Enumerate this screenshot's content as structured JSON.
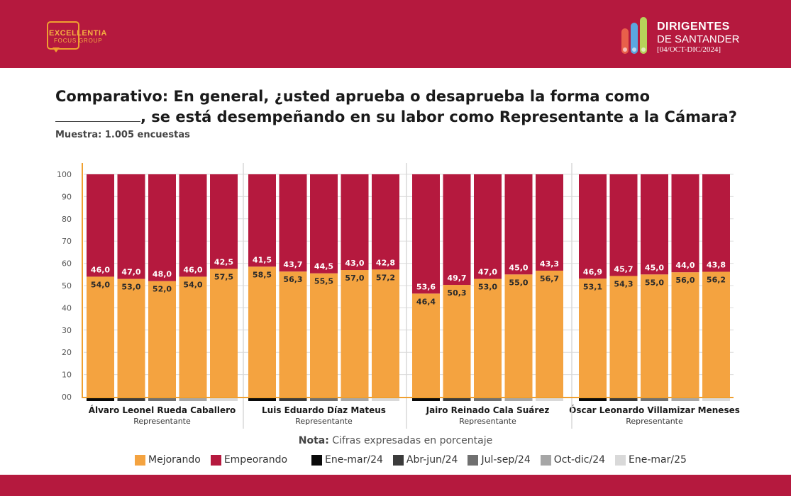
{
  "header": {
    "logo_left": {
      "name": "EXCELLENTIA",
      "sub": "FOCUS GROUP",
      "accent": "#f0a030"
    },
    "logo_right": {
      "title": "DIRIGENTES",
      "subtitle": "DE SANTANDER",
      "date": "[04/OCT-DIC/2024]"
    },
    "bar_color": "#b5193e"
  },
  "title_part1": "Comparativo: En general, ¿usted aprueba o desaprueba la forma como",
  "title_part2": ", se está desempeñando en su labor como Representante a la Cámara?",
  "sample": "Muestra: 1.005 encuestas",
  "nota_label": "Nota:",
  "nota_text": "Cifras expresadas en porcentaje",
  "chart_data": {
    "type": "bar",
    "stacked": true,
    "ylim": [
      0,
      100
    ],
    "yticks": [
      "00",
      "10",
      "20",
      "30",
      "40",
      "50",
      "60",
      "70",
      "80",
      "90",
      "100"
    ],
    "grid": true,
    "periods": [
      "Ene-mar/24",
      "Abr-jun/24",
      "Jul-sep/24",
      "Oct-dic/24",
      "Ene-mar/25"
    ],
    "period_colors": [
      "#0a0a0a",
      "#3b3b3b",
      "#707070",
      "#a6a6a6",
      "#d9d9d9"
    ],
    "series_legend": [
      {
        "name": "Mejorando",
        "color": "#f4a340"
      },
      {
        "name": "Empeorando",
        "color": "#b5193e"
      }
    ],
    "groups": [
      {
        "name": "Álvaro Leonel Rueda Caballero",
        "role": "Representante",
        "mejorando": [
          54.0,
          53.0,
          52.0,
          54.0,
          57.5
        ],
        "empeorando": [
          46.0,
          47.0,
          48.0,
          46.0,
          42.5
        ],
        "mejorando_labels": [
          "54,0",
          "53,0",
          "52,0",
          "54,0",
          "57,5"
        ],
        "empeorando_labels": [
          "46,0",
          "47,0",
          "48,0",
          "46,0",
          "42,5"
        ]
      },
      {
        "name": "Luis Eduardo Díaz Mateus",
        "role": "Representante",
        "mejorando": [
          58.5,
          56.3,
          55.5,
          57.0,
          57.2
        ],
        "empeorando": [
          41.5,
          43.7,
          44.5,
          43.0,
          42.8
        ],
        "mejorando_labels": [
          "58,5",
          "56,3",
          "55,5",
          "57,0",
          "57,2"
        ],
        "empeorando_labels": [
          "41,5",
          "43,7",
          "44,5",
          "43,0",
          "42,8"
        ]
      },
      {
        "name": "Jairo Reinado Cala Suárez",
        "role": "Representante",
        "mejorando": [
          46.4,
          50.3,
          53.0,
          55.0,
          56.7
        ],
        "empeorando": [
          53.6,
          49.7,
          47.0,
          45.0,
          43.3
        ],
        "mejorando_labels": [
          "46,4",
          "50,3",
          "53,0",
          "55,0",
          "56,7"
        ],
        "empeorando_labels": [
          "53,6",
          "49,7",
          "47,0",
          "45,0",
          "43,3"
        ]
      },
      {
        "name": "Óscar Leonardo Villamizar Meneses",
        "role": "Representante",
        "mejorando": [
          53.1,
          54.3,
          55.0,
          56.0,
          56.2
        ],
        "empeorando": [
          46.9,
          45.7,
          45.0,
          44.0,
          43.8
        ],
        "mejorando_labels": [
          "53,1",
          "54,3",
          "55,0",
          "56,0",
          "56,2"
        ],
        "empeorando_labels": [
          "46,9",
          "45,7",
          "45,0",
          "44,0",
          "43,8"
        ]
      }
    ]
  }
}
